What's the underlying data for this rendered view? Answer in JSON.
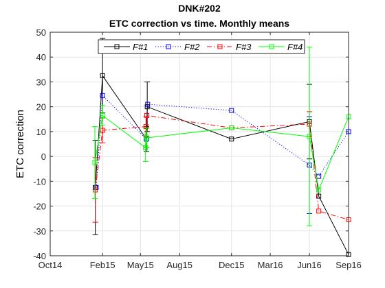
{
  "chart_data": {
    "type": "line",
    "title": [
      "DNK#202",
      "ETC correction vs time. Monthly means"
    ],
    "xlabel": "",
    "ylabel": "ETC correction",
    "xlim": [
      "2014-10-01",
      "2016-09-01"
    ],
    "ylim": [
      -40,
      50
    ],
    "xticks": [
      {
        "date": "2014-10-01",
        "label": "Oct14"
      },
      {
        "date": "2015-02-01",
        "label": "Feb15"
      },
      {
        "date": "2015-05-01",
        "label": "May15"
      },
      {
        "date": "2015-08-01",
        "label": "Aug15"
      },
      {
        "date": "2015-12-01",
        "label": "Dec15"
      },
      {
        "date": "2016-03-01",
        "label": "Mar16"
      },
      {
        "date": "2016-06-01",
        "label": "Jun16"
      },
      {
        "date": "2016-09-01",
        "label": "Sep16"
      }
    ],
    "yticks": [
      -40,
      -30,
      -20,
      -10,
      0,
      10,
      20,
      30,
      40,
      50
    ],
    "grid": true,
    "legend_position": "top",
    "series": [
      {
        "name": "F#1",
        "color": "#000000",
        "dash": "solid",
        "points": [
          {
            "x": "2015-01-15",
            "y": -12.5,
            "err": 19
          },
          {
            "x": "2015-02-01",
            "y": 32.5,
            "err": 15
          },
          {
            "x": "2015-05-15",
            "y": 7,
            "err": 5
          },
          {
            "x": "2015-05-17",
            "y": 20,
            "err": 10
          },
          {
            "x": "2015-12-01",
            "y": 7,
            "err": 0
          },
          {
            "x": "2016-06-01",
            "y": 14,
            "err": 15
          },
          {
            "x": "2016-06-23",
            "y": -16,
            "err": 0
          },
          {
            "x": "2016-09-01",
            "y": -39.5,
            "err": 0
          }
        ]
      },
      {
        "name": "F#2",
        "color": "#0000ff",
        "dash": "dotted",
        "points": [
          {
            "x": "2015-01-17",
            "y": -12.5,
            "err": 0
          },
          {
            "x": "2015-02-01",
            "y": 24.5,
            "err": 0
          },
          {
            "x": "2015-05-15",
            "y": 7,
            "err": 0
          },
          {
            "x": "2015-05-18",
            "y": 21,
            "err": 0
          },
          {
            "x": "2015-12-01",
            "y": 18.5,
            "err": 0
          },
          {
            "x": "2016-06-01",
            "y": -3.5,
            "err": 19.5
          },
          {
            "x": "2016-06-23",
            "y": -8,
            "err": 0
          },
          {
            "x": "2016-09-01",
            "y": 10,
            "err": 0
          }
        ]
      },
      {
        "name": "F#3",
        "color": "#ff0000",
        "dash": "dashdot",
        "points": [
          {
            "x": "2015-01-15",
            "y": -13.5,
            "err": 13
          },
          {
            "x": "2015-02-01",
            "y": 10.5,
            "err": 5
          },
          {
            "x": "2015-05-14",
            "y": 12,
            "err": 4
          },
          {
            "x": "2015-05-16",
            "y": 16.5,
            "err": 0
          },
          {
            "x": "2015-12-01",
            "y": 11.5,
            "err": 0
          },
          {
            "x": "2016-06-01",
            "y": 13,
            "err": 5
          },
          {
            "x": "2016-06-23",
            "y": -22,
            "err": 0
          },
          {
            "x": "2016-09-01",
            "y": -25.5,
            "err": 0
          }
        ]
      },
      {
        "name": "F#4",
        "color": "#00ff00",
        "dash": "solid",
        "points": [
          {
            "x": "2015-01-14",
            "y": -2.5,
            "err": 14.5
          },
          {
            "x": "2015-02-01",
            "y": 16.5,
            "err": 4
          },
          {
            "x": "2015-05-13",
            "y": 3.5,
            "err": 5.5
          },
          {
            "x": "2015-05-16",
            "y": 7.5,
            "err": 4
          },
          {
            "x": "2015-12-01",
            "y": 11.5,
            "err": 0
          },
          {
            "x": "2016-06-01",
            "y": 8,
            "err": 36
          },
          {
            "x": "2016-06-23",
            "y": -13.5,
            "err": 0
          },
          {
            "x": "2016-09-01",
            "y": 16,
            "err": 0
          }
        ]
      }
    ]
  }
}
